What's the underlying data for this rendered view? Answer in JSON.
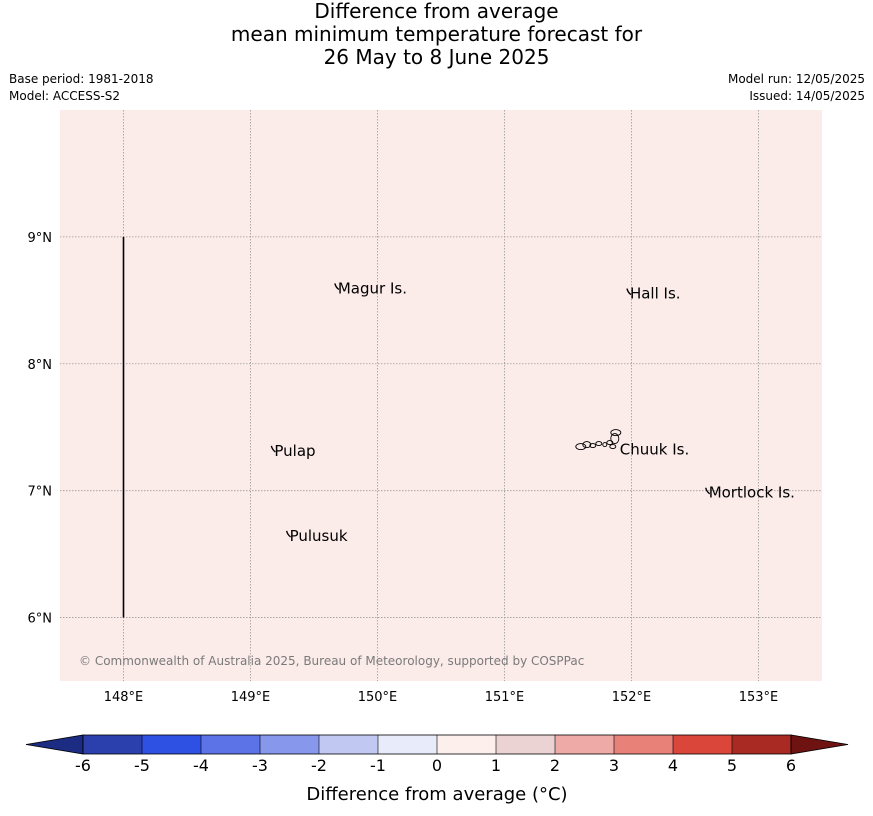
{
  "title": {
    "line1": "Difference from average",
    "line2": "mean minimum temperature forecast for",
    "line3": "26 May to 8 June 2025"
  },
  "meta": {
    "base_period": "Base period: 1981-2018",
    "model": "Model: ACCESS-S2",
    "model_run": "Model run: 12/05/2025",
    "issued": "Issued: 14/05/2025"
  },
  "map": {
    "background_color": "#fbebe9",
    "lon_range": [
      147.5,
      153.5
    ],
    "lat_range": [
      5.5,
      10.0
    ],
    "lon_ticks": [
      {
        "value": 148,
        "label": "148°E"
      },
      {
        "value": 149,
        "label": "149°E"
      },
      {
        "value": 150,
        "label": "150°E"
      },
      {
        "value": 151,
        "label": "151°E"
      },
      {
        "value": 152,
        "label": "152°E"
      },
      {
        "value": 153,
        "label": "153°E"
      }
    ],
    "lat_ticks": [
      {
        "value": 6,
        "label": "6°N"
      },
      {
        "value": 7,
        "label": "7°N"
      },
      {
        "value": 8,
        "label": "8°N"
      },
      {
        "value": 9,
        "label": "9°N"
      }
    ],
    "boundary_line": {
      "lon": 148,
      "lat_from": 6,
      "lat_to": 9
    },
    "places": [
      {
        "name": "Magur Is.",
        "lon": 149.68,
        "lat": 8.57
      },
      {
        "name": "Hall Is.",
        "lon": 151.98,
        "lat": 8.53
      },
      {
        "name": "Pulap",
        "lon": 149.18,
        "lat": 7.29
      },
      {
        "name": "Chuuk Is.",
        "lon": 151.9,
        "lat": 7.3
      },
      {
        "name": "Mortlock Is.",
        "lon": 152.6,
        "lat": 6.96
      },
      {
        "name": "Pulusuk",
        "lon": 149.3,
        "lat": 6.62
      }
    ],
    "copyright": "© Commonwealth of Australia 2025, Bureau of Meteorology, supported by COSPPac"
  },
  "colorbar": {
    "title": "Difference from average (°C)",
    "ticks": [
      "-6",
      "-5",
      "-4",
      "-3",
      "-2",
      "-1",
      "0",
      "1",
      "2",
      "3",
      "4",
      "5",
      "6"
    ],
    "under_color": "#1b2c82",
    "over_color": "#6e1212",
    "colors": [
      "#2b3fad",
      "#2f51e3",
      "#5b73e6",
      "#8797ec",
      "#c1c8f2",
      "#e8ebf9",
      "#fcefec",
      "#ecd3d3",
      "#eeaaa6",
      "#e88279",
      "#db463b",
      "#a92a22"
    ]
  }
}
